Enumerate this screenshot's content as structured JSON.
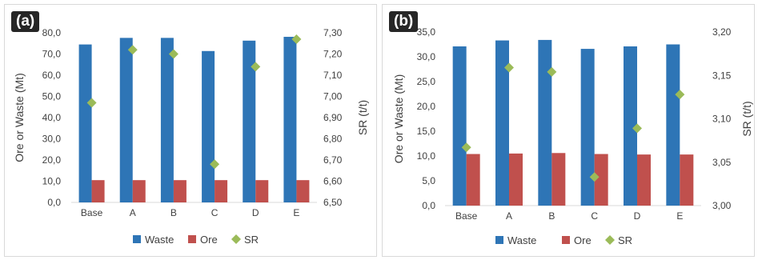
{
  "chart_data": [
    {
      "panel_label": "(a)",
      "type": "bar",
      "categories": [
        "Base",
        "A",
        "B",
        "C",
        "D",
        "E"
      ],
      "series": [
        {
          "name": "Waste",
          "type": "bar",
          "axis": "left",
          "color": "#2e75b6",
          "values": [
            74.5,
            77.6,
            77.6,
            71.4,
            76.3,
            78.1
          ]
        },
        {
          "name": "Ore",
          "type": "bar",
          "axis": "left",
          "color": "#c0504d",
          "values": [
            10.5,
            10.5,
            10.5,
            10.5,
            10.5,
            10.5
          ]
        },
        {
          "name": "SR",
          "type": "scatter",
          "axis": "right",
          "color": "#9bbb59",
          "values": [
            6.97,
            7.22,
            7.2,
            6.68,
            7.14,
            7.27
          ]
        }
      ],
      "ylabel": "Ore or Waste (Mt)",
      "y2label": "SR (t/t)",
      "ylim": [
        0,
        80
      ],
      "y2lim": [
        6.5,
        7.3
      ],
      "yticks": [
        "0,0",
        "10,0",
        "20,0",
        "30,0",
        "40,0",
        "50,0",
        "60,0",
        "70,0",
        "80,0"
      ],
      "y2ticks": [
        "6,50",
        "6,60",
        "6,70",
        "6,80",
        "6,90",
        "7,00",
        "7,10",
        "7,20",
        "7,30"
      ],
      "grid": false,
      "legend": "bottom"
    },
    {
      "panel_label": "(b)",
      "type": "bar",
      "categories": [
        "Base",
        "A",
        "B",
        "C",
        "D",
        "E"
      ],
      "series": [
        {
          "name": "Waste",
          "type": "bar",
          "axis": "left",
          "color": "#2e75b6",
          "values": [
            32.1,
            33.3,
            33.4,
            31.6,
            32.1,
            32.5
          ]
        },
        {
          "name": "Ore",
          "type": "bar",
          "axis": "left",
          "color": "#c0504d",
          "values": [
            10.4,
            10.5,
            10.6,
            10.4,
            10.3,
            10.3
          ]
        },
        {
          "name": "SR",
          "type": "scatter",
          "axis": "right",
          "color": "#9bbb59",
          "values": [
            3.067,
            3.159,
            3.154,
            3.033,
            3.089,
            3.128
          ]
        }
      ],
      "ylabel": "Ore or Waste (Mt)",
      "y2label": "SR (t/t)",
      "ylim": [
        0,
        35
      ],
      "y2lim": [
        3.0,
        3.2
      ],
      "yticks": [
        "0,0",
        "5,0",
        "10,0",
        "15,0",
        "20,0",
        "25,0",
        "30,0",
        "35,0"
      ],
      "y2ticks": [
        "3,00",
        "3,05",
        "3,10",
        "3,15",
        "3,20"
      ],
      "grid": false,
      "legend": "bottom"
    }
  ]
}
